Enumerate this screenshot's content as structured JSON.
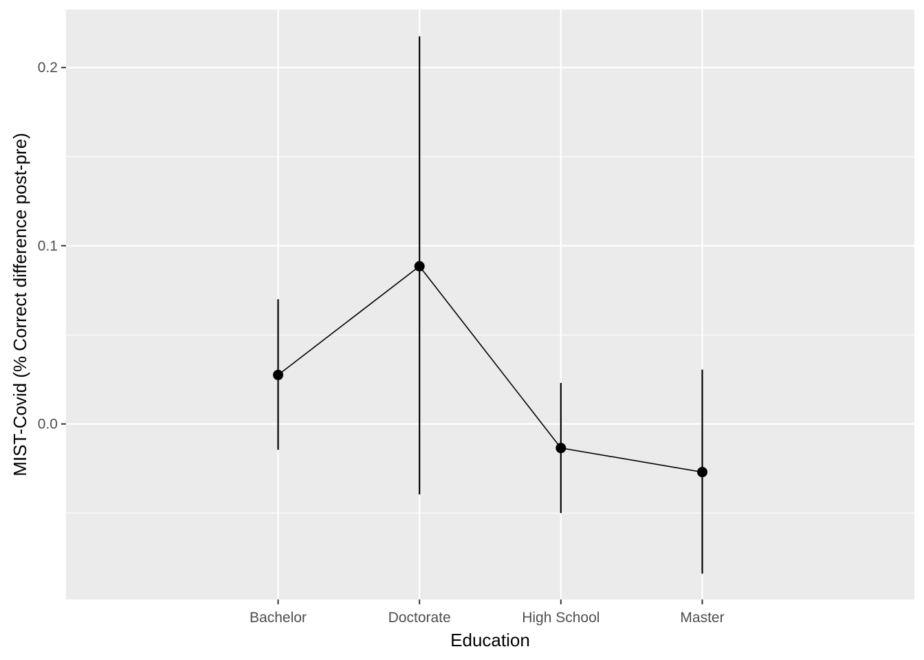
{
  "chart_data": {
    "type": "line",
    "title": "",
    "xlabel": "Education",
    "ylabel": "MIST-Covid (% Correct difference post-pre)",
    "categories": [
      "Bachelor",
      "Doctorate",
      "High School",
      "Master"
    ],
    "series": [
      {
        "values": [
          0.0275,
          0.0885,
          -0.0135,
          -0.027
        ],
        "lower": [
          -0.0145,
          -0.0395,
          -0.05,
          -0.084
        ],
        "upper": [
          0.07,
          0.2175,
          0.023,
          0.0305
        ]
      }
    ],
    "ylim": [
      -0.0985,
      0.2325
    ],
    "yticks": [
      0.0,
      0.1,
      0.2
    ],
    "ytick_labels": [
      "0.0",
      "0.1",
      "0.2"
    ],
    "grid": true,
    "legend": "none",
    "colors": {
      "panel_background": "#ebebeb",
      "grid": "#ffffff",
      "marks": "#000000",
      "tick_text": "#4d4d4d"
    }
  }
}
